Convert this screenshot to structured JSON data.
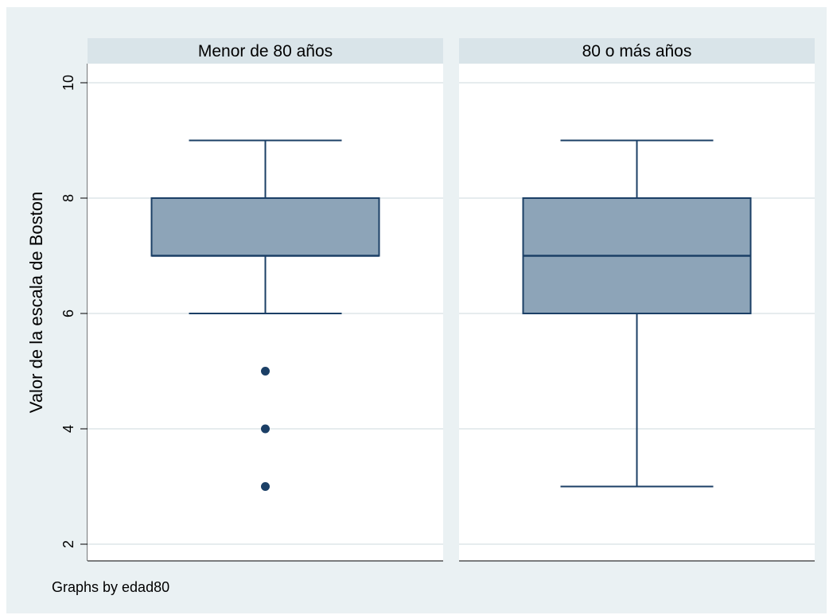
{
  "chart_data": {
    "type": "box",
    "ylabel": "Valor de la escala de Boston",
    "yticks": [
      2,
      4,
      6,
      8,
      10
    ],
    "ylim": [
      2,
      10
    ],
    "grid": true,
    "note": "Graphs by edad80",
    "panels": [
      {
        "title": "Menor de 80 años",
        "whisker_low": 6,
        "q1": 7,
        "median": 7,
        "q3": 8,
        "whisker_high": 9,
        "outliers": [
          5,
          4,
          3
        ]
      },
      {
        "title": "80 o más años",
        "whisker_low": 3,
        "q1": 6,
        "median": 7,
        "q3": 8,
        "whisker_high": 9,
        "outliers": []
      }
    ],
    "colors": {
      "background": "#eaf1f3",
      "plot": "#ffffff",
      "header": "#d9e4e9",
      "box_fill": "#8da4b8",
      "line": "#1b3f66",
      "grid": "#e6ecee"
    }
  }
}
